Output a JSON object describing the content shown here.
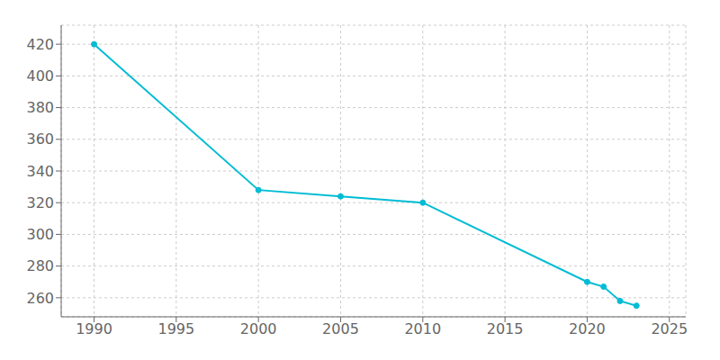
{
  "chart_data": {
    "type": "line",
    "x": [
      1990,
      2000,
      2005,
      2010,
      2020,
      2021,
      2022,
      2023
    ],
    "values": [
      420,
      328,
      324,
      320,
      270,
      267,
      258,
      255
    ],
    "color": "#00bcd4",
    "marker": "circle",
    "xlim": [
      1988,
      2026
    ],
    "xticks": [
      1990,
      1995,
      2000,
      2005,
      2010,
      2015,
      2020,
      2025
    ],
    "ylim": [
      248,
      432
    ],
    "yticks": [
      260,
      280,
      300,
      320,
      340,
      360,
      380,
      400,
      420
    ],
    "grid": true
  }
}
